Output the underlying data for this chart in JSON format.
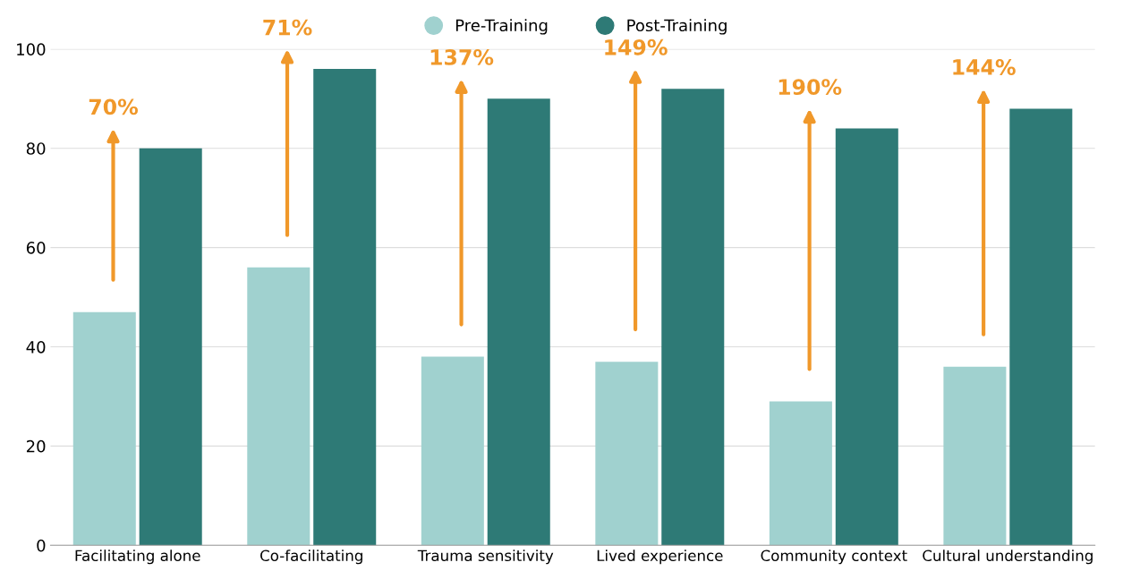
{
  "chart_data": {
    "type": "bar",
    "categories": [
      "Facilitating alone",
      "Co-facilitating",
      "Trauma sensitivity",
      "Lived experience",
      "Community context",
      "Cultural understanding"
    ],
    "series": [
      {
        "name": "Pre-Training",
        "color": "#a0d1cf",
        "values": [
          47,
          56,
          38,
          37,
          29,
          36
        ]
      },
      {
        "name": "Post-Training",
        "color": "#2e7a76",
        "values": [
          80,
          96,
          90,
          92,
          84,
          88
        ]
      }
    ],
    "annotations": [
      "70%",
      "71%",
      "137%",
      "149%",
      "190%",
      "144%"
    ],
    "ylim": [
      0,
      100
    ],
    "yticks": [
      0,
      20,
      40,
      60,
      80,
      100
    ],
    "grid": "y",
    "legend": "top"
  }
}
